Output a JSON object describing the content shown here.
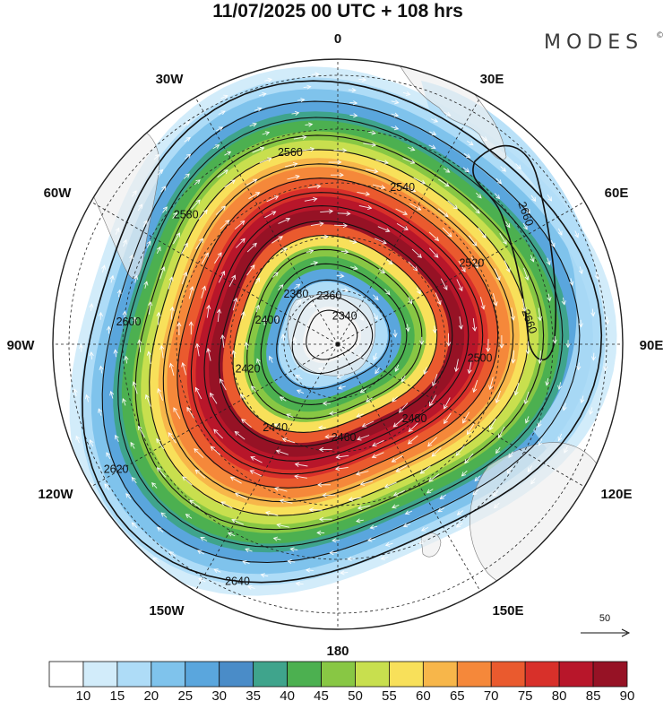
{
  "header": {
    "title": "11/07/2025  00 UTC  + 108 hrs",
    "brand": "MODES",
    "brand_mark": "©"
  },
  "map": {
    "projection": "south-polar-stereographic",
    "longitude_labels": [
      "0",
      "30E",
      "60E",
      "90E",
      "120E",
      "150E",
      "180",
      "150W",
      "120W",
      "90W",
      "60W",
      "30W"
    ],
    "wind_shading_colors": [
      "#ffffff",
      "#d2ecfa",
      "#aedcf7",
      "#7fc3ec",
      "#5aa6dd",
      "#4a8cc8",
      "#3fa48c",
      "#4cb050",
      "#88c744",
      "#c8df4e",
      "#f8e05a",
      "#f7b64a",
      "#f5883a",
      "#ea5a2e",
      "#d8302a",
      "#b8162a",
      "#961225"
    ],
    "height_contours": [
      {
        "label": "2640",
        "r": 285
      },
      {
        "label": "2620",
        "r": 262
      },
      {
        "label": "2600",
        "r": 244
      },
      {
        "label": "2580",
        "r": 224
      },
      {
        "label": "2560",
        "r": 208
      },
      {
        "label": "2540",
        "r": 192
      },
      {
        "label": "2520",
        "r": 176
      },
      {
        "label": "2500",
        "r": 160
      },
      {
        "label": "2480",
        "r": 145
      },
      {
        "label": "2460",
        "r": 128
      },
      {
        "label": "2440",
        "r": 112
      },
      {
        "label": "2420",
        "r": 96
      },
      {
        "label": "2400",
        "r": 80
      },
      {
        "label": "2380",
        "r": 62
      },
      {
        "label": "2360",
        "r": 44
      },
      {
        "label": "2340",
        "r": 28
      }
    ],
    "anticyclone_contour": {
      "label": "2660"
    },
    "reference_vector": {
      "label": "50"
    }
  },
  "colorbar": {
    "ticks": [
      "10",
      "15",
      "20",
      "25",
      "30",
      "35",
      "40",
      "45",
      "50",
      "55",
      "60",
      "65",
      "70",
      "75",
      "80",
      "85",
      "90"
    ],
    "colors": [
      "#ffffff",
      "#d2ecfa",
      "#aedcf7",
      "#7fc3ec",
      "#5aa6dd",
      "#4a8cc8",
      "#3fa48c",
      "#4cb050",
      "#88c744",
      "#c8df4e",
      "#f8e05a",
      "#f7b64a",
      "#f5883a",
      "#ea5a2e",
      "#d8302a",
      "#b8162a",
      "#961225"
    ]
  }
}
